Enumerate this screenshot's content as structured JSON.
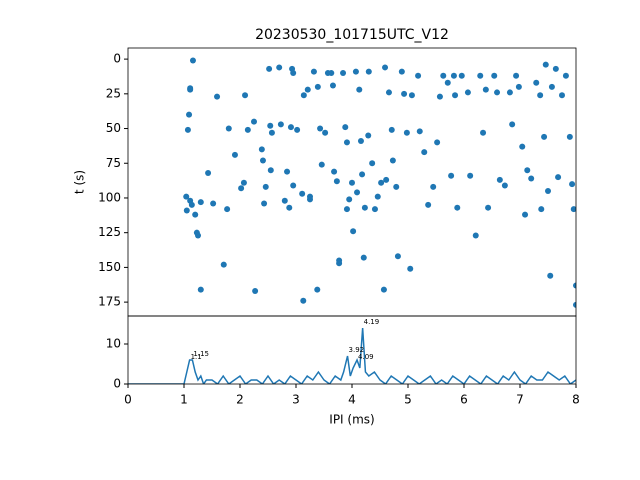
{
  "chart_data": [
    {
      "type": "scatter",
      "title": "20230530_101715UTC_V12",
      "ylabel": "t (s)",
      "color": "#1f77b4",
      "xlim": [
        0,
        8
      ],
      "ylim": [
        -8,
        185
      ],
      "y_inverted": true,
      "yticks": [
        0,
        25,
        50,
        75,
        100,
        125,
        150,
        175
      ],
      "x": [
        1.16,
        1.11,
        1.11,
        1.09,
        1.07,
        1.04,
        1.05,
        1.11,
        1.14,
        1.2,
        1.23,
        1.25,
        1.3,
        1.3,
        1.43,
        1.52,
        1.59,
        1.71,
        1.77,
        1.8,
        1.91,
        2.02,
        2.07,
        2.09,
        2.14,
        2.25,
        2.27,
        2.39,
        2.41,
        2.43,
        2.46,
        2.52,
        2.54,
        2.57,
        2.55,
        2.7,
        2.73,
        2.8,
        2.84,
        2.88,
        2.93,
        2.91,
        2.95,
        2.95,
        3.02,
        3.11,
        3.13,
        3.14,
        3.21,
        3.25,
        3.25,
        3.32,
        3.38,
        3.39,
        3.43,
        3.46,
        3.52,
        3.57,
        3.63,
        3.66,
        3.68,
        3.73,
        3.77,
        3.77,
        3.84,
        3.88,
        3.91,
        3.91,
        3.95,
        4.0,
        4.02,
        4.07,
        4.09,
        4.13,
        4.16,
        4.18,
        4.23,
        4.21,
        4.3,
        4.29,
        4.36,
        4.41,
        4.46,
        4.52,
        4.57,
        4.59,
        4.61,
        4.66,
        4.71,
        4.73,
        4.79,
        4.82,
        4.89,
        4.93,
        4.98,
        5.04,
        5.07,
        5.18,
        5.21,
        5.29,
        5.36,
        5.45,
        5.52,
        5.57,
        5.63,
        5.71,
        5.77,
        5.82,
        5.84,
        5.88,
        5.96,
        6.07,
        6.11,
        6.21,
        6.29,
        6.34,
        6.39,
        6.43,
        6.54,
        6.59,
        6.64,
        6.73,
        6.82,
        6.86,
        6.93,
        6.98,
        7.04,
        7.09,
        7.13,
        7.2,
        7.29,
        7.36,
        7.38,
        7.43,
        7.46,
        7.5,
        7.54,
        7.57,
        7.64,
        7.68,
        7.75,
        7.82,
        7.89,
        7.93,
        7.96,
        8.0,
        8.0
      ],
      "values": [
        1,
        21,
        22,
        40,
        51,
        99,
        109,
        102,
        105,
        112,
        125,
        127,
        166,
        103,
        82,
        104,
        27,
        148,
        108,
        50,
        69,
        93,
        89,
        26,
        51,
        45,
        167,
        65,
        73,
        104,
        92,
        7,
        48,
        53,
        80,
        6,
        47,
        102,
        81,
        107,
        7,
        49,
        10,
        91,
        51,
        97,
        174,
        26,
        22,
        99,
        101,
        9,
        166,
        20,
        50,
        76,
        53,
        10,
        10,
        19,
        81,
        88,
        145,
        147,
        10,
        49,
        60,
        108,
        101,
        89,
        124,
        9,
        96,
        22,
        59,
        83,
        107,
        143,
        9,
        55,
        75,
        108,
        99,
        89,
        166,
        6,
        87,
        24,
        51,
        73,
        92,
        142,
        9,
        25,
        53,
        151,
        26,
        12,
        52,
        67,
        105,
        92,
        60,
        27,
        12,
        17,
        84,
        12,
        26,
        107,
        12,
        24,
        84,
        127,
        12,
        53,
        22,
        107,
        12,
        24,
        87,
        91,
        24,
        47,
        12,
        20,
        63,
        112,
        80,
        86,
        17,
        26,
        108,
        56,
        4,
        95,
        156,
        20,
        7,
        85,
        26,
        12,
        56,
        90,
        108,
        163,
        177
      ]
    },
    {
      "type": "line",
      "xlabel": "IPI (ms)",
      "color": "#1f77b4",
      "xlim": [
        0,
        8
      ],
      "xticks": [
        0,
        1,
        2,
        3,
        4,
        5,
        6,
        7,
        8
      ],
      "ylim": [
        0,
        17
      ],
      "yticks": [
        0,
        10
      ],
      "x": [
        0,
        1.0,
        1.05,
        1.1,
        1.15,
        1.2,
        1.25,
        1.3,
        1.35,
        1.4,
        1.5,
        1.6,
        1.7,
        1.8,
        1.9,
        2.0,
        2.1,
        2.2,
        2.3,
        2.4,
        2.5,
        2.6,
        2.7,
        2.8,
        2.9,
        3.0,
        3.1,
        3.2,
        3.3,
        3.4,
        3.5,
        3.6,
        3.7,
        3.8,
        3.85,
        3.92,
        3.97,
        4.02,
        4.09,
        4.14,
        4.19,
        4.24,
        4.3,
        4.4,
        4.5,
        4.6,
        4.7,
        4.8,
        4.9,
        5.0,
        5.1,
        5.2,
        5.3,
        5.4,
        5.5,
        5.6,
        5.7,
        5.8,
        5.9,
        6.0,
        6.1,
        6.2,
        6.3,
        6.4,
        6.5,
        6.6,
        6.7,
        6.8,
        6.9,
        7.0,
        7.1,
        7.2,
        7.3,
        7.4,
        7.5,
        7.6,
        7.7,
        7.8,
        7.9,
        8.0
      ],
      "values": [
        0,
        0,
        3,
        6,
        6,
        3,
        1,
        2,
        0,
        1,
        1,
        0,
        2,
        0,
        1,
        2,
        0,
        1,
        1,
        0,
        2,
        0,
        1,
        0,
        2,
        1,
        0,
        2,
        1,
        3,
        1,
        0,
        2,
        1,
        3,
        7,
        2,
        4,
        6,
        4,
        14,
        3,
        2,
        3,
        1,
        0,
        2,
        1,
        0,
        2,
        1,
        0,
        1,
        2,
        0,
        1,
        0,
        2,
        1,
        0,
        2,
        1,
        0,
        2,
        1,
        0,
        2,
        1,
        3,
        1,
        0,
        2,
        1,
        1,
        3,
        2,
        1,
        2,
        0,
        1
      ],
      "annotations": [
        {
          "text": "1.15",
          "x": 1.15,
          "y": 6
        },
        {
          "text": "1.1",
          "x": 1.1,
          "y": 6
        },
        {
          "text": "3.92",
          "x": 3.92,
          "y": 7
        },
        {
          "text": "4.09",
          "x": 4.09,
          "y": 6
        },
        {
          "text": "4.19",
          "x": 4.19,
          "y": 14
        }
      ]
    }
  ]
}
